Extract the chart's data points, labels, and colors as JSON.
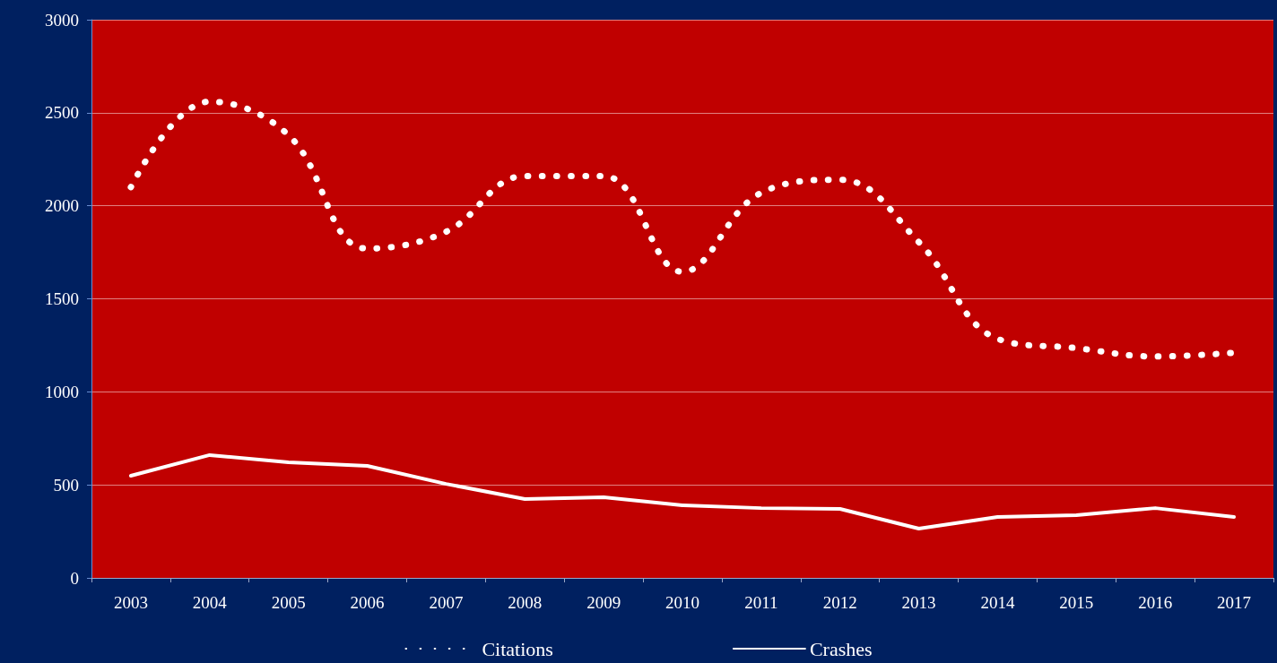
{
  "chart_data": {
    "type": "line",
    "categories": [
      "2003",
      "2004",
      "2005",
      "2006",
      "2007",
      "2008",
      "2009",
      "2010",
      "2011",
      "2012",
      "2013",
      "2014",
      "2015",
      "2016",
      "2017"
    ],
    "series": [
      {
        "name": "Citations",
        "color": "#ffffff",
        "line_style": "dotted",
        "values": [
          2100,
          2560,
          2380,
          1770,
          1860,
          2160,
          2160,
          1645,
          2070,
          2140,
          1805,
          1285,
          1235,
          1190,
          1210
        ]
      },
      {
        "name": "Crashes",
        "color": "#ffffff",
        "line_style": "solid",
        "values": [
          549,
          660,
          621,
          602,
          505,
          424,
          433,
          390,
          375,
          371,
          265,
          327,
          337,
          375,
          327
        ]
      }
    ],
    "ylim": [
      0,
      3000
    ],
    "yticks": [
      0,
      500,
      1000,
      1500,
      2000,
      2500,
      3000
    ],
    "grid": "y",
    "legend": "bottom",
    "marker": "none"
  }
}
